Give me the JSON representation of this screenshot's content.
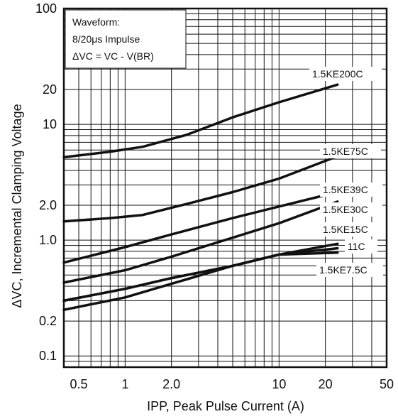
{
  "chart_data": {
    "type": "line",
    "title": "",
    "xlabel": "IPP, Peak Pulse Current (A)",
    "ylabel": "ΔVC, Incremental Clamping Voltage",
    "x_scale": "log",
    "y_scale": "log",
    "xlim": [
      0.4,
      50
    ],
    "ylim": [
      0.08,
      100
    ],
    "grid": true,
    "x_ticks": [
      {
        "value": 0.5,
        "label": "0.5"
      },
      {
        "value": 1,
        "label": "1"
      },
      {
        "value": 2,
        "label": "2.0"
      },
      {
        "value": 10,
        "label": "10"
      },
      {
        "value": 20,
        "label": "20"
      },
      {
        "value": 50,
        "label": "50"
      }
    ],
    "y_ticks": [
      {
        "value": 0.1,
        "label": "0.1"
      },
      {
        "value": 0.2,
        "label": "0.2"
      },
      {
        "value": 1,
        "label": "1.0"
      },
      {
        "value": 2,
        "label": "2.0"
      },
      {
        "value": 10,
        "label": "10"
      },
      {
        "value": 20,
        "label": "20"
      },
      {
        "value": 100,
        "label": "100"
      }
    ],
    "annotation": {
      "lines": [
        "Waveform:",
        "8/20μs Impulse",
        "ΔVC = VC - V(BR)"
      ]
    },
    "series": [
      {
        "name": "1.5KE200C",
        "x": [
          0.4,
          0.8,
          1.3,
          2.5,
          5,
          10,
          24
        ],
        "y": [
          5.2,
          5.8,
          6.4,
          8.1,
          11.5,
          15.5,
          22
        ]
      },
      {
        "name": "1.5KE75C",
        "x": [
          0.4,
          0.8,
          1.3,
          2.5,
          5,
          10,
          24
        ],
        "y": [
          1.45,
          1.55,
          1.65,
          2.05,
          2.6,
          3.4,
          5.3
        ]
      },
      {
        "name": "1.5KE39C",
        "x": [
          0.4,
          1,
          2,
          5,
          10,
          24
        ],
        "y": [
          0.64,
          0.87,
          1.12,
          1.55,
          1.95,
          2.6
        ]
      },
      {
        "name": "1.5KE30C",
        "x": [
          0.4,
          1,
          2,
          5,
          10,
          24
        ],
        "y": [
          0.43,
          0.55,
          0.72,
          1.05,
          1.4,
          2.15
        ]
      },
      {
        "name": "1.5KE15C",
        "x": [
          0.4,
          1,
          2,
          5,
          10,
          24
        ],
        "y": [
          0.3,
          0.38,
          0.47,
          0.6,
          0.75,
          0.93
        ]
      },
      {
        "name": "11C",
        "x": [
          0.4,
          1,
          2,
          5,
          10,
          24
        ],
        "y": [
          0.3,
          0.38,
          0.47,
          0.6,
          0.75,
          0.85
        ]
      },
      {
        "name": "1.5KE7.5C",
        "x": [
          0.4,
          1,
          2,
          5,
          10,
          24
        ],
        "y": [
          0.25,
          0.32,
          0.42,
          0.6,
          0.75,
          0.78
        ]
      }
    ]
  }
}
